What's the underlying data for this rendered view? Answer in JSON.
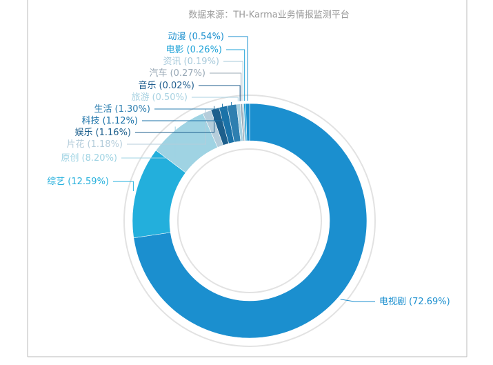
{
  "chart_data": {
    "type": "donut",
    "subtitle": "数据来源：TH-Karma业务情报监测平台",
    "categories": [
      "电视剧",
      "综艺",
      "原创",
      "片花",
      "娱乐",
      "科技",
      "生活",
      "旅游",
      "音乐",
      "汽车",
      "资讯",
      "电影",
      "动漫"
    ],
    "values": [
      72.69,
      12.59,
      8.2,
      1.18,
      1.16,
      1.12,
      1.3,
      0.5,
      0.02,
      0.27,
      0.19,
      0.26,
      0.54
    ],
    "value_labels": [
      "(72.69%)",
      "(12.59%)",
      "(8.20%)",
      "(1.18%)",
      "(1.16%)",
      "(1.12%)",
      "(1.30%)",
      "(0.50%)",
      "(0.02%)",
      "(0.27%)",
      "(0.19%)",
      "(0.26%)",
      "(0.54%)"
    ],
    "colors": [
      "#1b8fcf",
      "#23afdc",
      "#9fd3e3",
      "#b5cddb",
      "#1d5f8c",
      "#1b72a8",
      "#2e7fb0",
      "#a9d2e2",
      "#1f5d8e",
      "#98a8b6",
      "#a6c9da",
      "#1fa3d8",
      "#1a8fcf"
    ]
  }
}
